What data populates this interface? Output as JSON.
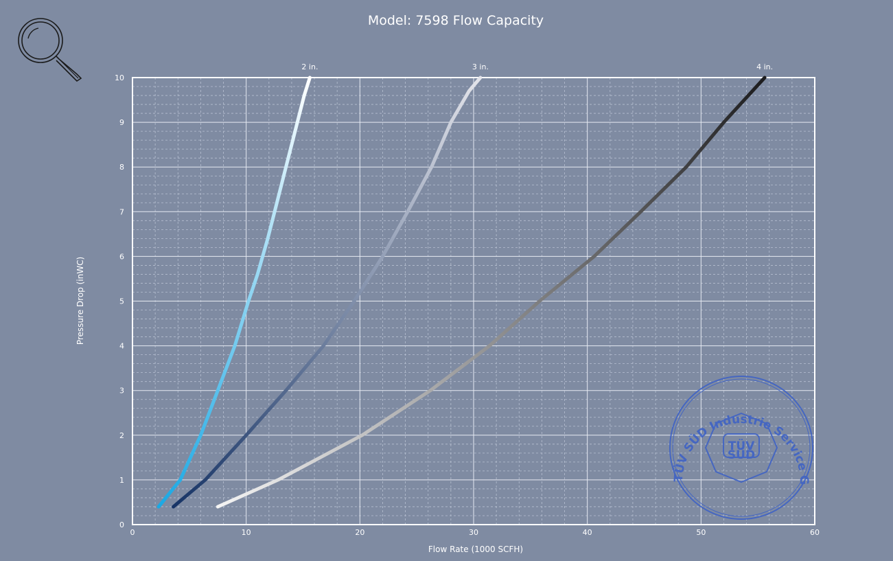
{
  "colors": {
    "background": "#7f8ba2",
    "grid_major": "#e6eaf2",
    "grid_minor": "#b7c0d1",
    "stamp": "#3f63c5"
  },
  "toolbar": {
    "zoom_icon": "magnifier-icon"
  },
  "chart_data": {
    "type": "line",
    "title": "Model: 7598 Flow Capacity",
    "xlabel": "Flow Rate (1000 SCFH)",
    "ylabel": "Pressure Drop (inWC)",
    "xlim": [
      0,
      60
    ],
    "ylim": [
      0,
      10
    ],
    "xticks": [
      "0",
      "10",
      "20",
      "30",
      "40",
      "50",
      "60"
    ],
    "yticks": [
      "0",
      "1",
      "2",
      "3",
      "4",
      "5",
      "6",
      "7",
      "8",
      "9",
      "10"
    ],
    "grid": true,
    "series": [
      {
        "name": "2 in.",
        "colors": [
          "#1aa8e4",
          "#ffffff"
        ],
        "x": [
          2.3,
          4.2,
          6.0,
          7.5,
          9.0,
          10.2,
          11.0,
          11.9,
          12.7,
          13.5,
          14.3,
          15.1,
          15.6
        ],
        "y": [
          0.4,
          1.0,
          2.0,
          3.0,
          4.0,
          5.0,
          5.6,
          6.4,
          7.2,
          8.0,
          8.8,
          9.6,
          10.0
        ]
      },
      {
        "name": "3 in.",
        "colors": [
          "#173466",
          "#e3e4ea"
        ],
        "x": [
          3.6,
          6.4,
          10.0,
          13.5,
          16.8,
          19.5,
          22.0,
          24.2,
          26.3,
          28.0,
          29.6,
          30.6
        ],
        "y": [
          0.4,
          1.0,
          2.0,
          3.0,
          4.0,
          5.0,
          6.0,
          7.0,
          8.0,
          9.0,
          9.7,
          10.0
        ]
      },
      {
        "name": "4 in.",
        "colors": [
          "#f4f4f4",
          "#1c1c1e"
        ],
        "x": [
          7.5,
          12.8,
          20.2,
          26.2,
          31.4,
          35.8,
          40.6,
          44.7,
          48.7,
          52.0,
          55.6
        ],
        "y": [
          0.4,
          1.0,
          2.0,
          3.0,
          4.0,
          5.0,
          6.0,
          7.0,
          8.0,
          9.0,
          10.0
        ]
      }
    ]
  },
  "stamp": {
    "ring_text": "TÜV SÜD Industrie Service GmbH",
    "center_text": "TÜV",
    "sub_text": "SÜD"
  }
}
